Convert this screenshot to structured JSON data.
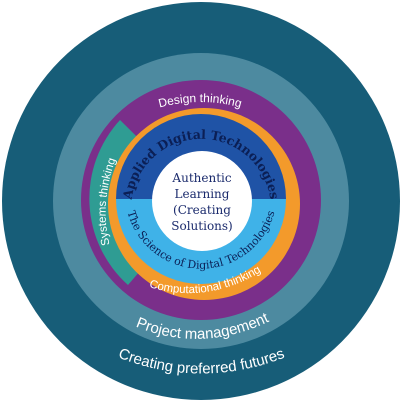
{
  "diagram": {
    "center": {
      "lines": [
        "Authentic",
        "Learning",
        "(Creating",
        "Solutions)"
      ]
    },
    "rings": {
      "outer": "Creating preferred futures",
      "project": "Project management",
      "design": "Design thinking",
      "systems": "Systems thinking",
      "computational": "Computational thinking",
      "applied": "Applied Digital Technologies",
      "science": "The Science of Digital Technologies"
    },
    "colors": {
      "outer_ring": "#175d78",
      "project_ring": "#4d8aa0",
      "purple": "#7a2f8a",
      "systems_teal": "#2f9c93",
      "computational_orange": "#f39a2b",
      "applied_blue": "#1f53a6",
      "science_lightblue": "#3fb2e8",
      "center_fill": "#ffffff"
    }
  }
}
